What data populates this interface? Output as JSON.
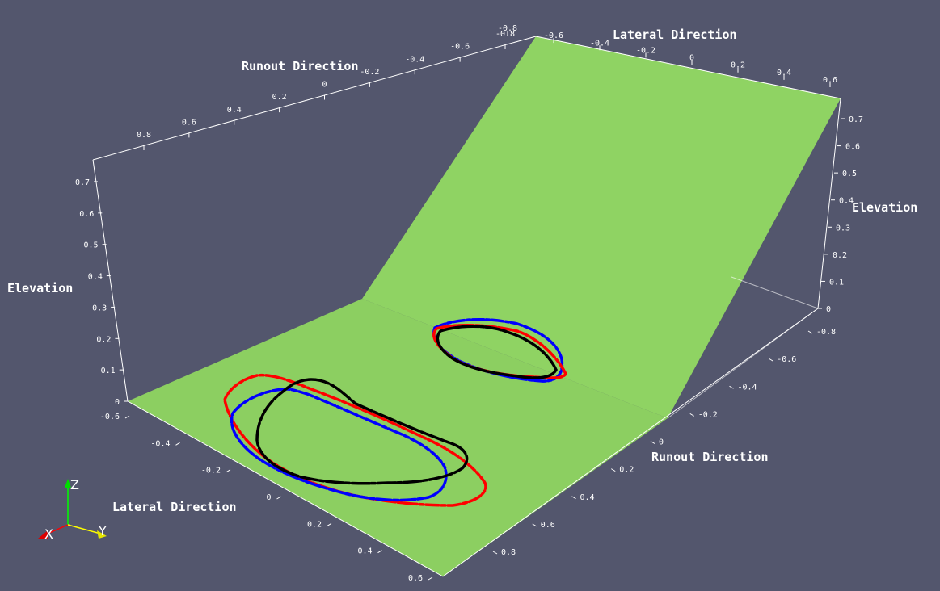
{
  "scene": {
    "background_color": "#53566d",
    "terrain_color": "#8fd363",
    "terrain_flat_color": "#8ccf61"
  },
  "axes": {
    "back_lateral": {
      "title": "Lateral Direction",
      "ticks": [
        "-0.8",
        "-0.6",
        "-0.4",
        "-0.2",
        "0",
        "0.2",
        "0.4",
        "0.6"
      ]
    },
    "back_runout": {
      "title": "Runout Direction",
      "ticks": [
        "0.8",
        "0.6",
        "0.4",
        "0.2",
        "0",
        "-0.2",
        "-0.4",
        "-0.6",
        "-0.8"
      ]
    },
    "left_elevation": {
      "title": "Elevation",
      "ticks": [
        "0",
        "0.1",
        "0.2",
        "0.3",
        "0.4",
        "0.5",
        "0.6",
        "0.7"
      ]
    },
    "right_elevation": {
      "title": "Elevation",
      "ticks": [
        "0",
        "0.1",
        "0.2",
        "0.3",
        "0.4",
        "0.5",
        "0.6",
        "0.7"
      ]
    },
    "front_lateral": {
      "title": "Lateral Direction",
      "ticks": [
        "-0.6",
        "-0.4",
        "-0.2",
        "0",
        "0.2",
        "0.4",
        "0.6"
      ]
    },
    "front_runout": {
      "title": "Runout Direction",
      "ticks": [
        "-0.8",
        "-0.6",
        "-0.4",
        "-0.2",
        "0",
        "0.2",
        "0.4",
        "0.6",
        "0.8"
      ]
    }
  },
  "contours": [
    {
      "color": "#000000"
    },
    {
      "color": "#0000ff"
    },
    {
      "color": "#ff0000"
    }
  ],
  "orientation_triad": {
    "x_label": "X",
    "y_label": "Y",
    "z_label": "Z",
    "x_color": "#ff0000",
    "y_color": "#ffff00",
    "z_color": "#00ff00"
  }
}
